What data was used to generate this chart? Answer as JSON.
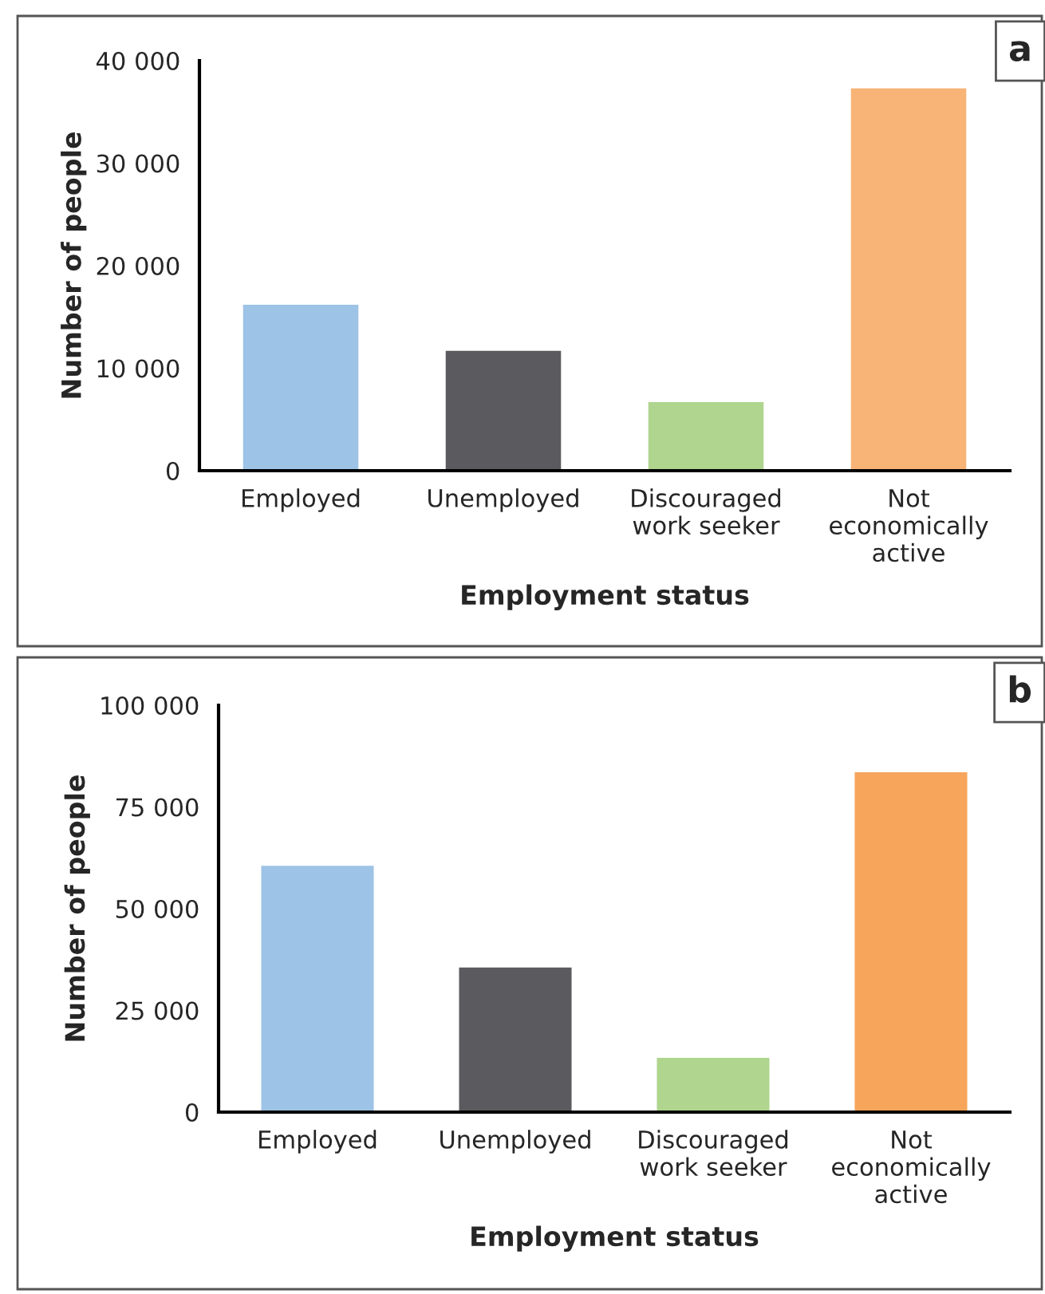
{
  "chart_data": [
    {
      "type": "bar",
      "annotations": [
        "a"
      ],
      "xlabel": "Employment status",
      "ylabel": "Number of people",
      "categories": [
        "Employed",
        "Unemployed",
        "Discouraged\nwork seeker",
        "Not\neconomically\nactive"
      ],
      "values": [
        16300,
        11800,
        6800,
        37400
      ],
      "colors": [
        "#9dc3e6",
        "#5b5a5f",
        "#afd58e",
        "#f8b377"
      ],
      "ylim": [
        0,
        40000
      ],
      "yticks": [
        0,
        {
          "value": 10000,
          "label": "10 000"
        },
        {
          "value": 20000,
          "label": "20 000"
        },
        {
          "value": 30000,
          "label": "30 000"
        },
        {
          "value": 40000,
          "label": "40 000"
        }
      ],
      "grid": false,
      "legend": false
    },
    {
      "type": "bar",
      "annotations": [
        "b"
      ],
      "xlabel": "Employment status",
      "ylabel": "Number of people",
      "categories": [
        "Employed",
        "Unemployed",
        "Discouraged\nwork seeker",
        "Not\neconomically\nactive"
      ],
      "values": [
        60800,
        35800,
        13600,
        83800
      ],
      "colors": [
        "#9dc3e6",
        "#5b5a5f",
        "#afd58e",
        "#f6a55a"
      ],
      "ylim": [
        0,
        100000
      ],
      "yticks": [
        0,
        {
          "value": 25000,
          "label": "25 000"
        },
        {
          "value": 50000,
          "label": "50 000"
        },
        {
          "value": 75000,
          "label": "75 000"
        },
        {
          "value": 100000,
          "label": "100 000"
        }
      ],
      "grid": false,
      "legend": false
    }
  ]
}
